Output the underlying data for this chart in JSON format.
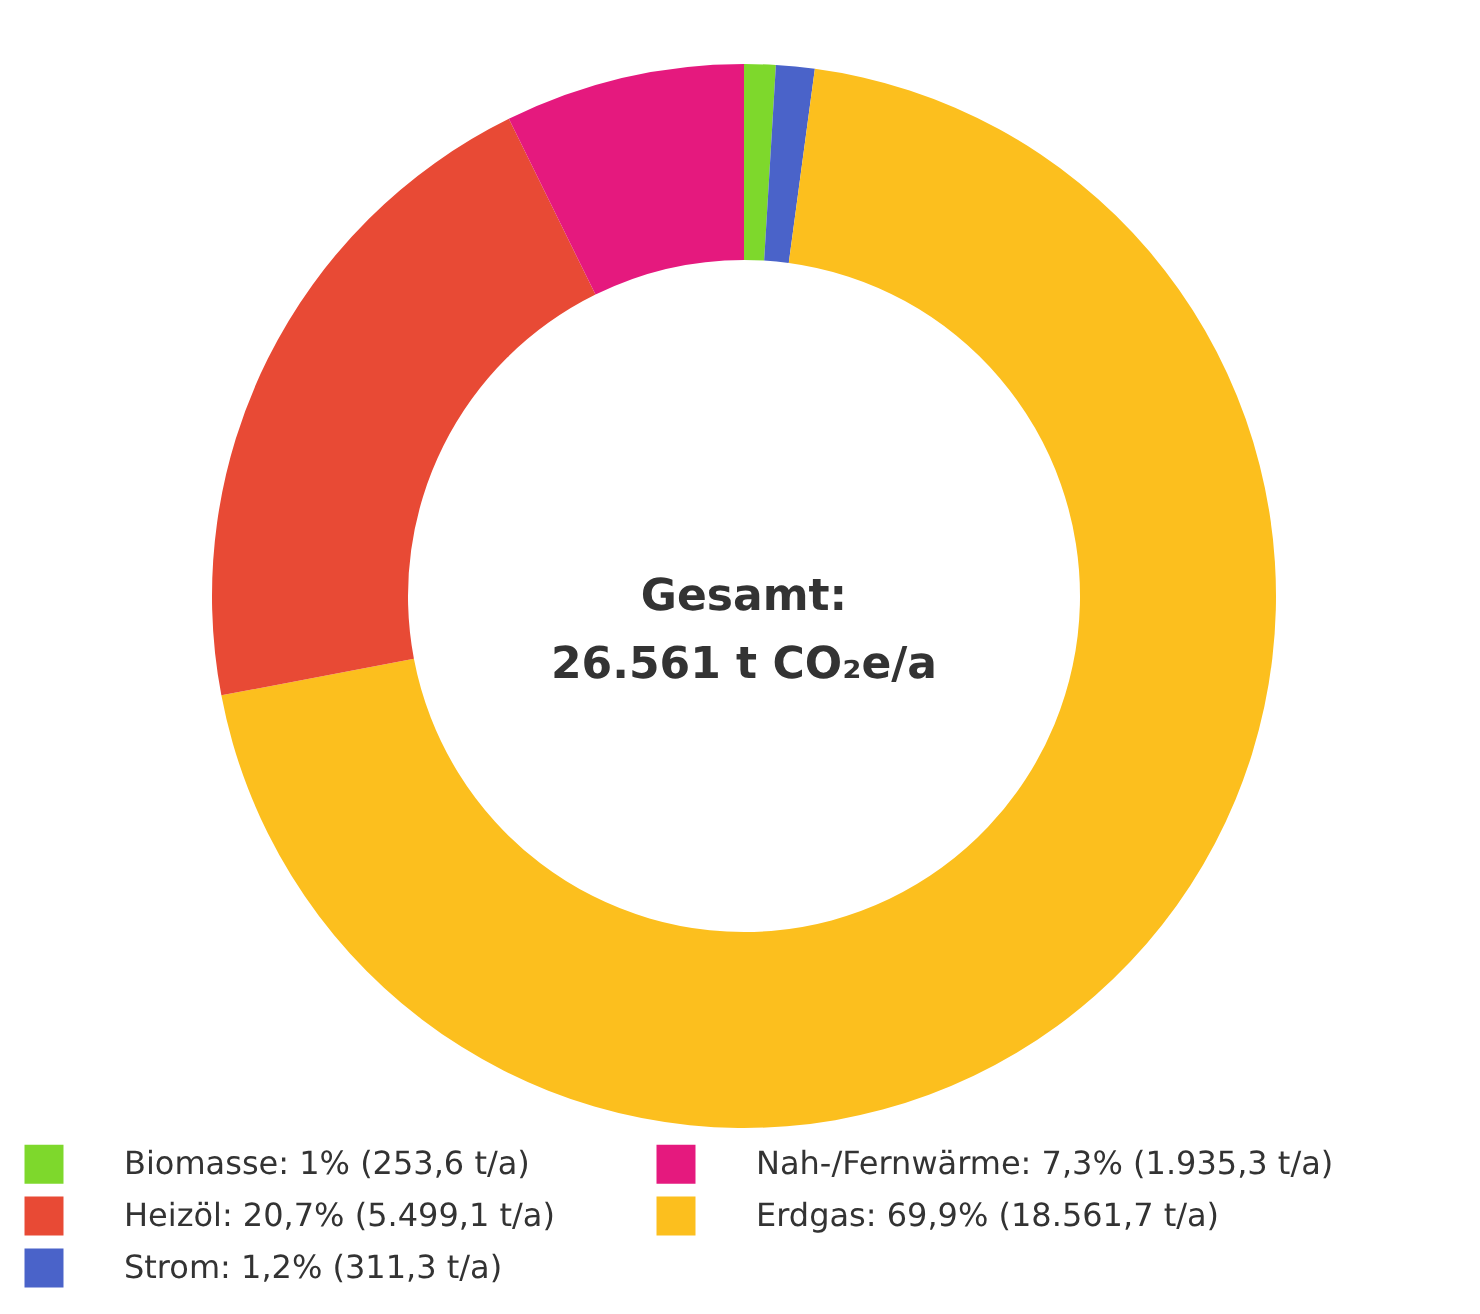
{
  "chart_data": {
    "type": "donut",
    "categories": [
      "Biomasse: 1% (253,6 t/a)",
      "Strom: 1,2% (311,3 t/a)",
      "Erdgas: 69,9% (18.561,7 t/a)",
      "Heizöl: 20,7% (5.499,1 t/a)",
      "Nah-/Fernwärme: 7,3% (1.935,3 t/a)"
    ],
    "values": [
      253.6,
      311.3,
      18561.7,
      5499.1,
      1935.3
    ],
    "colors": [
      "#7ed82c",
      "#4a63c9",
      "#fcbf1e",
      "#e84a35",
      "#e5197e"
    ],
    "annotations": [
      "Gesamt:",
      "26.561 t CO₂e/a"
    ],
    "legend": "bottom"
  }
}
